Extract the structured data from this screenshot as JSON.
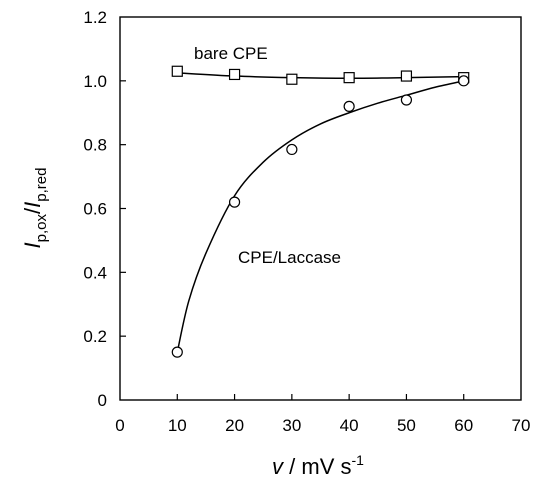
{
  "chart_data": {
    "type": "scatter",
    "xlabel": {
      "symbol": "v",
      "unit": " / mV s",
      "unit_sup": "-1"
    },
    "ylabel": {
      "num": "I",
      "num_sub": "p,ox",
      "slash": "/",
      "den": "I",
      "den_sub": "p,red"
    },
    "xlim": [
      0,
      70
    ],
    "ylim": [
      0,
      1.2
    ],
    "xticks": [
      "0",
      "10",
      "20",
      "30",
      "40",
      "50",
      "60",
      "70"
    ],
    "yticks": [
      "0",
      "0.2",
      "0.4",
      "0.6",
      "0.8",
      "1.0",
      "1.2"
    ],
    "grid": false,
    "series": [
      {
        "marker": "square",
        "annotation": "bare CPE",
        "x": [
          10,
          20,
          30,
          40,
          50,
          60
        ],
        "y": [
          1.03,
          1.02,
          1.005,
          1.01,
          1.015,
          1.01
        ],
        "fit": {
          "x": [
            10,
            20,
            30,
            40,
            50,
            60
          ],
          "y": [
            1.025,
            1.015,
            1.01,
            1.008,
            1.01,
            1.013
          ]
        }
      },
      {
        "marker": "circle",
        "annotation": "CPE/Laccase",
        "x": [
          10,
          20,
          30,
          40,
          50,
          60
        ],
        "y": [
          0.15,
          0.62,
          0.785,
          0.92,
          0.94,
          1.0
        ],
        "fit": {
          "x": [
            10,
            12,
            15,
            20,
            25,
            30,
            35,
            40,
            45,
            50,
            55,
            60
          ],
          "y": [
            0.15,
            0.31,
            0.46,
            0.64,
            0.745,
            0.815,
            0.865,
            0.9,
            0.93,
            0.955,
            0.98,
            1.0
          ]
        }
      }
    ]
  }
}
